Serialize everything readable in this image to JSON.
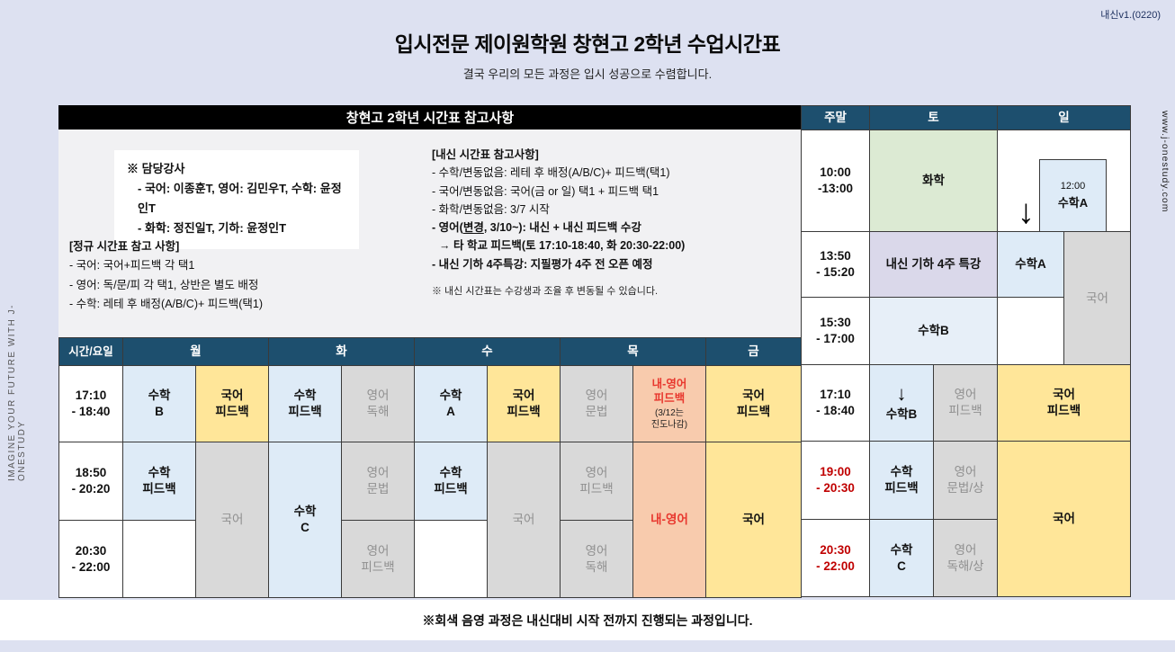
{
  "page": {
    "version_label": "내신v1.(0220)",
    "left_vertical_text": "IMAGINE YOUR FUTURE WITH J-ONESTUDY",
    "right_vertical_text": "www.j-onestudy.com",
    "title": "입시전문 제이원학원 창현고 2학년 수업시간표",
    "subtitle": "결국 우리의 모든 과정은 입시 성공으로 수렴합니다.",
    "footer_note": "※회색 음영 과정은 내신대비 시작 전까지 진행되는 과정입니다."
  },
  "icons": {
    "down_arrow": "↓"
  },
  "colors": {
    "header_navy": "#1d4f6e",
    "light_blue": "#deebf7",
    "yellow": "#ffe699",
    "gray": "#d9d9d9",
    "salmon": "#f8cbad",
    "green": "#dcead3",
    "lavender": "#dad8ea",
    "red_time": "#c00000",
    "red_text": "#e8372e",
    "page_background": "#dde1f1"
  },
  "notes": {
    "black_header": "창현고 2학년 시간표 참고사항",
    "teachers": {
      "heading": "※ 담당강사",
      "line1": "- 국어: 이종훈T,  영어: 김민우T,  수학: 윤정인T",
      "line2": "- 화학: 정진일T, 기하: 윤정인T"
    },
    "regular": {
      "heading": "[정규 시간표 참고 사항]",
      "lines": [
        "- 국어: 국어+피드백 각 택1",
        "- 영어: 독/문/피 각 택1, 상반은 별도 배정",
        "- 수학: 레테 후 배정(A/B/C)+ 피드백(택1)"
      ]
    },
    "naesin": {
      "heading": "[내신 시간표 참고사항]",
      "line1": "- 수학/변동없음: 레테 후 배정(A/B/C)+ 피드백(택1)",
      "line2": "- 국어/변동없음: 국어(금 or 일) 택1 + 피드백 택1",
      "line3": "- 화학/변동없음: 3/7 시작",
      "line4_pre": "- 영어(",
      "line4_underline": "변경",
      "line4_post": ", 3/10~): 내신 + 내신 피드백 수강",
      "line5": "→ 타 학교 피드백(토 17:10-18:40, 화 20:30-22:00)",
      "line6": "- 내신 기하 4주특강: 지필평가 4주 전 오픈 예정",
      "footnote": "※ 내신 시간표는 수강생과 조율 후 변동될 수 있습니다."
    }
  },
  "weekday_table": {
    "headers": [
      "시간/요일",
      "월",
      "화",
      "수",
      "목",
      "금"
    ],
    "times": [
      "17:10\n- 18:40",
      "18:50\n- 20:20",
      "20:30\n- 22:00"
    ],
    "cells": {
      "mon_1_left": "수학\nB",
      "mon_1_right": "국어\n피드백",
      "mon_2_left": "수학\n피드백",
      "mon_23_right": "국어",
      "tue_1_left": "수학\n피드백",
      "tue_1_right": "영어\n독해",
      "tue_23_left": "수학\nC",
      "tue_2_right": "영어\n문법",
      "tue_3_right": "영어\n피드백",
      "wed_1_left": "수학\nA",
      "wed_1_right": "국어\n피드백",
      "wed_2_left": "수학\n피드백",
      "wed_23_right": "국어",
      "thu_1_left": "영어\n문법",
      "thu_1_right_main": "내-영어\n피드백",
      "thu_1_right_note": "(3/12는\n진도나감)",
      "thu_2_left": "영어\n피드백",
      "thu_3_left": "영어\n독해",
      "thu_23_right": "내-영어",
      "fri_1": "국어\n피드백",
      "fri_23": "국어"
    }
  },
  "weekend_table": {
    "headers": [
      "주말",
      "토",
      "일"
    ],
    "times": [
      "10:00\n-13:00",
      "13:50\n- 15:20",
      "15:30\n- 17:00",
      "17:10\n- 18:40",
      "19:00\n- 20:30",
      "20:30\n- 22:00"
    ],
    "cells": {
      "sat_1": "화학",
      "sat_2": "내신 기하 4주 특강",
      "sat_3": "수학B",
      "sat_4_left": "수학B",
      "sat_4_right": "영어\n피드백",
      "sat_5_left": "수학\n피드백",
      "sat_5_right": "영어\n문법/상",
      "sat_6_left": "수학\nC",
      "sat_6_right": "영어\n독해/상",
      "sun_1_time": "12:00",
      "sun_1_label": "수학A",
      "sun_2_left": "수학A",
      "sun_23_right": "국어",
      "sun_4": "국어\n피드백",
      "sun_56": "국어"
    }
  }
}
